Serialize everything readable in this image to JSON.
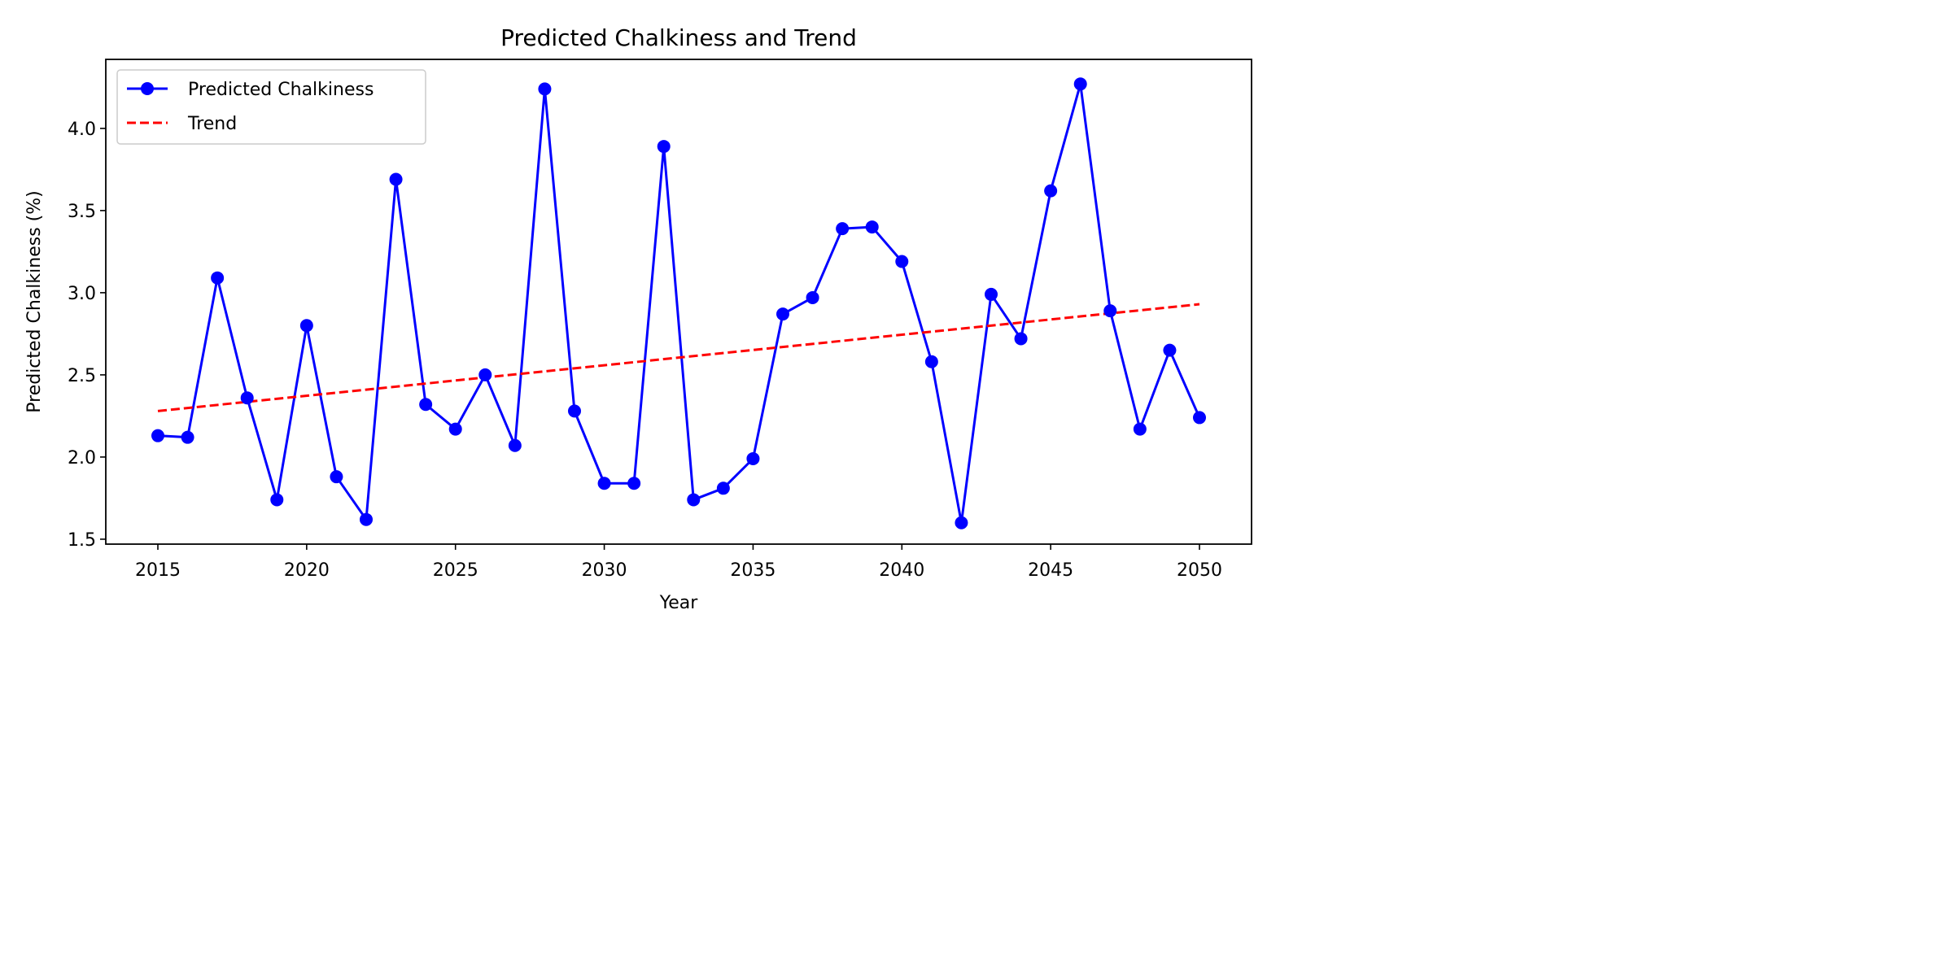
{
  "chart_data": {
    "type": "line",
    "title": "Predicted Chalkiness and Trend",
    "xlabel": "Year",
    "ylabel": "Predicted Chalkiness (%)",
    "xlim": [
      2013.25,
      2051.75
    ],
    "ylim": [
      1.47,
      4.42
    ],
    "xticks": [
      2015,
      2020,
      2025,
      2030,
      2035,
      2040,
      2045,
      2050
    ],
    "yticks": [
      1.5,
      2.0,
      2.5,
      3.0,
      3.5,
      4.0
    ],
    "ytick_labels": [
      "1.5",
      "2.0",
      "2.5",
      "3.0",
      "3.5",
      "4.0"
    ],
    "grid": false,
    "legend_position": "top-left",
    "series": [
      {
        "name": "Predicted Chalkiness",
        "style": "solid line with circle markers",
        "color": "#0000ff",
        "x": [
          2015,
          2016,
          2017,
          2018,
          2019,
          2020,
          2021,
          2022,
          2023,
          2024,
          2025,
          2026,
          2027,
          2028,
          2029,
          2030,
          2031,
          2032,
          2033,
          2034,
          2035,
          2036,
          2037,
          2038,
          2039,
          2040,
          2041,
          2042,
          2043,
          2044,
          2045,
          2046,
          2047,
          2048,
          2049,
          2050
        ],
        "y": [
          2.13,
          2.12,
          3.09,
          2.36,
          1.74,
          2.8,
          1.88,
          1.62,
          3.69,
          2.32,
          2.17,
          2.5,
          2.07,
          4.24,
          2.28,
          1.84,
          1.84,
          3.89,
          1.74,
          1.81,
          1.99,
          2.87,
          2.97,
          3.39,
          3.4,
          3.19,
          2.58,
          1.6,
          2.99,
          2.72,
          3.62,
          4.27,
          2.89,
          2.17,
          2.65,
          2.24
        ]
      },
      {
        "name": "Trend",
        "style": "dashed line",
        "color": "#ff0000",
        "x": [
          2015,
          2050
        ],
        "y": [
          2.28,
          2.93
        ]
      }
    ]
  }
}
